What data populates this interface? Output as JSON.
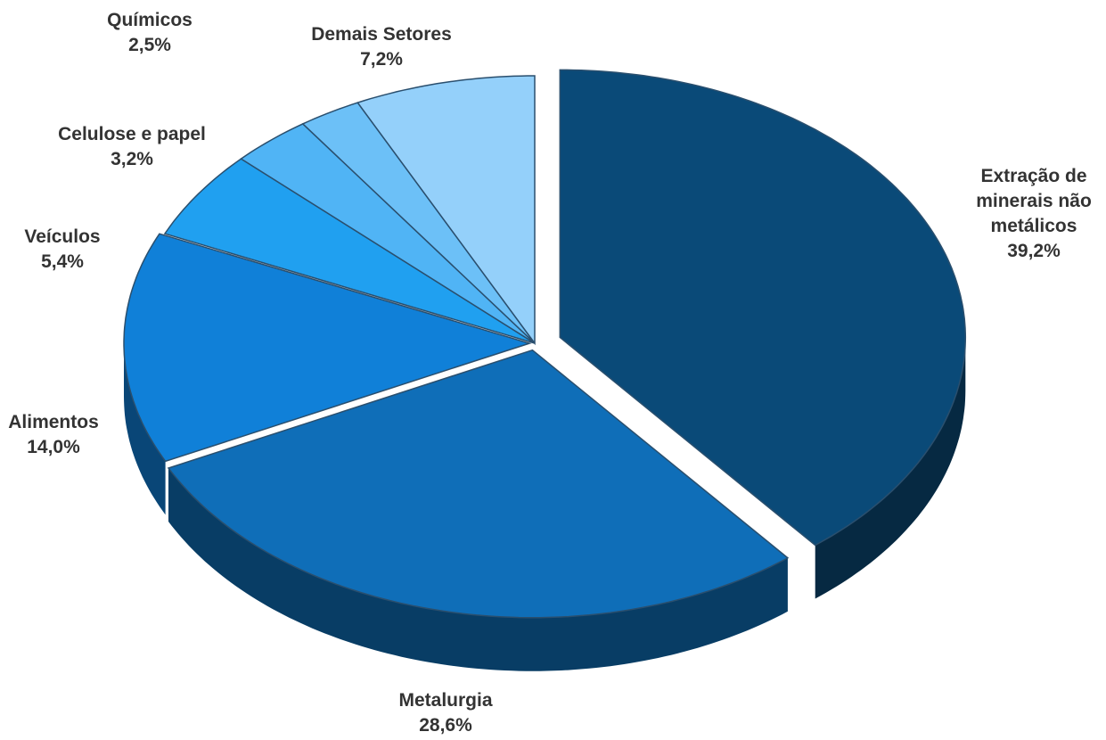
{
  "chart_data": {
    "type": "pie",
    "categories": [
      "Extração de minerais não metálicos",
      "Metalurgia",
      "Alimentos",
      "Veículos",
      "Celulose e papel",
      "Químicos",
      "Demais Setores"
    ],
    "values": [
      39.2,
      28.6,
      14.0,
      5.4,
      3.2,
      2.5,
      7.2
    ],
    "value_labels": [
      "39,2%",
      "28,6%",
      "14,0%",
      "5,4%",
      "3,2%",
      "2,5%",
      "7,2%"
    ],
    "colors": [
      "#0a4a78",
      "#0f6eb8",
      "#1080d8",
      "#20a0f0",
      "#50b4f5",
      "#6cc0f7",
      "#94d0fa"
    ]
  }
}
